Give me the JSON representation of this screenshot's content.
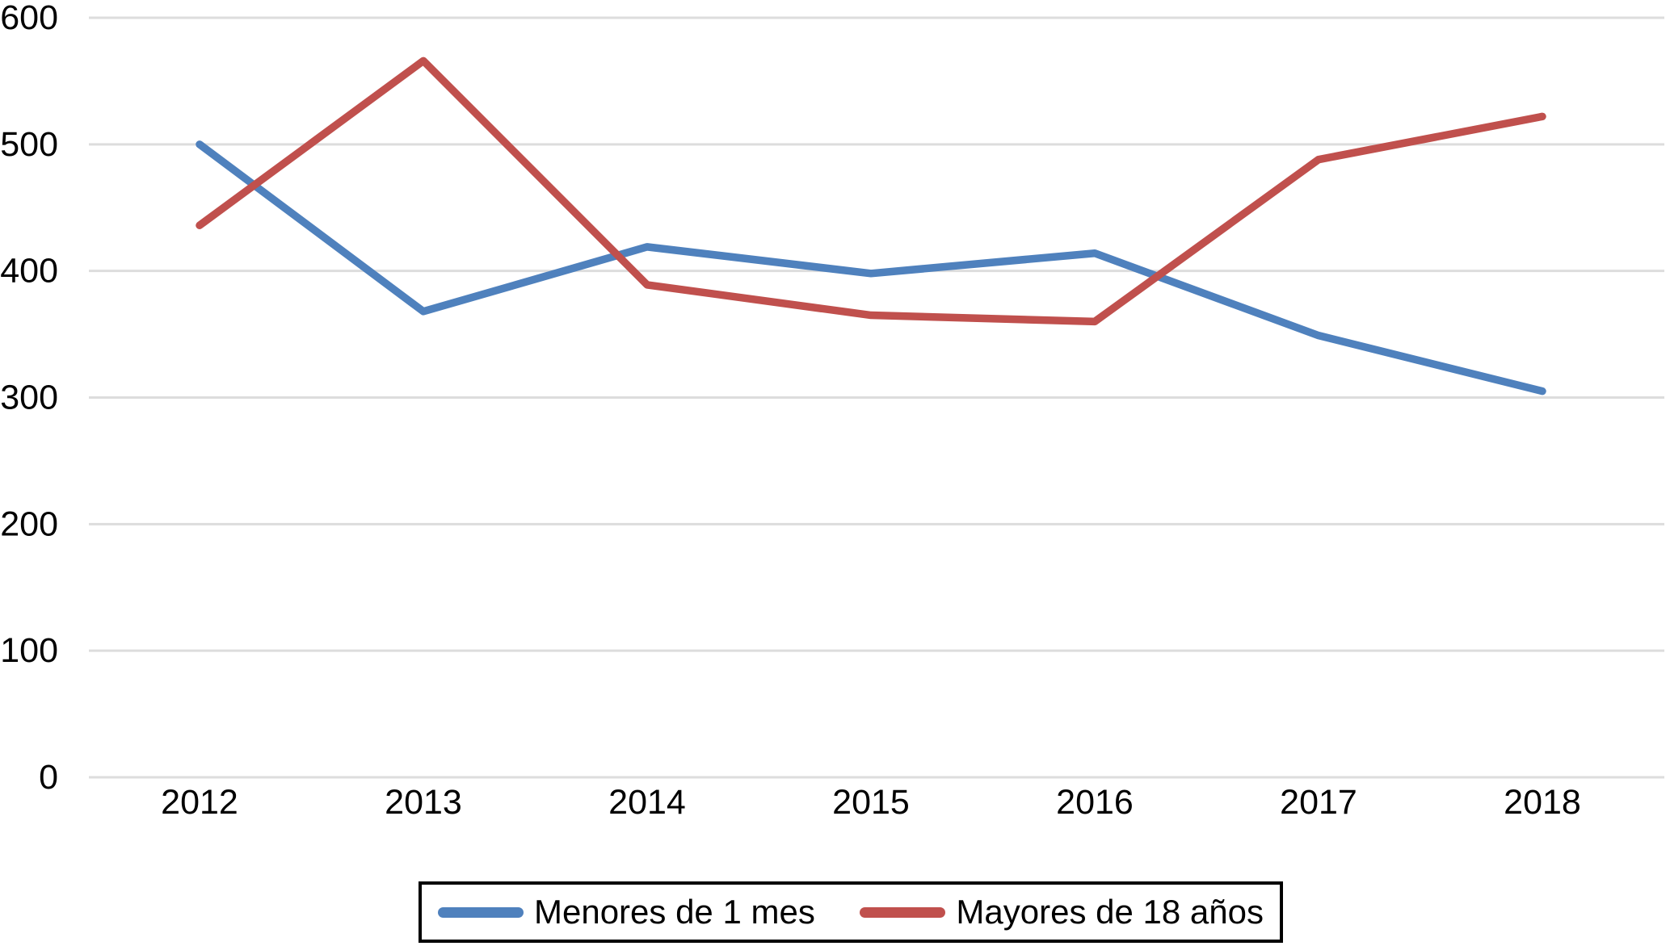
{
  "chart_data": {
    "type": "line",
    "title": "",
    "xlabel": "",
    "ylabel": "",
    "categories": [
      "2012",
      "2013",
      "2014",
      "2015",
      "2016",
      "2017",
      "2018"
    ],
    "series": [
      {
        "name": "Menores de 1 mes",
        "color": "#4F81BD",
        "values": [
          500,
          368,
          419,
          398,
          414,
          349,
          305
        ]
      },
      {
        "name": "Mayores de 18 años",
        "color": "#C0504D",
        "values": [
          436,
          566,
          389,
          365,
          360,
          488,
          522
        ]
      }
    ],
    "ylim": [
      0,
      600
    ],
    "yticks": [
      0,
      100,
      200,
      300,
      400,
      500,
      600
    ],
    "grid": true,
    "gridline_color": "#DDDDDD",
    "axis_text_color": "#000000",
    "line_width": 9.5,
    "legend_position": "bottom",
    "legend_border_color": "#000000"
  }
}
